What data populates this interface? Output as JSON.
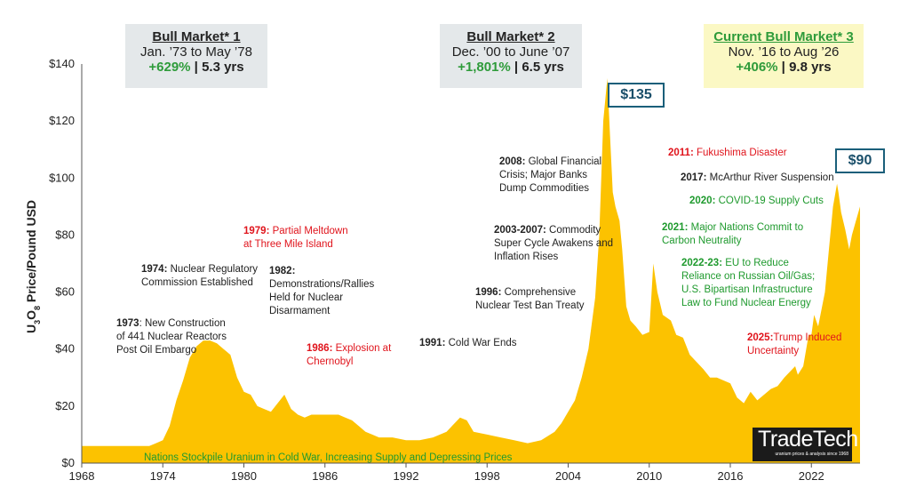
{
  "chart_data": {
    "type": "area",
    "ylabel": "Price/Pound USD",
    "ylabel_formula": "U3O8",
    "ylim": [
      0,
      140
    ],
    "xlim": [
      1968,
      2025.6
    ],
    "y_ticks": [
      "$0",
      "$20",
      "$40",
      "$60",
      "$80",
      "$100",
      "$120",
      "$140"
    ],
    "x_ticks": [
      "1968",
      "1974",
      "1980",
      "1986",
      "1992",
      "1998",
      "2004",
      "2010",
      "2016",
      "2022"
    ],
    "fill_color": "#fcc200",
    "x": [
      1968,
      1970,
      1972,
      1973,
      1973.5,
      1974,
      1974.5,
      1975,
      1975.5,
      1976,
      1976.5,
      1977,
      1977.5,
      1978,
      1978.5,
      1979,
      1979.5,
      1980,
      1980.5,
      1981,
      1981.5,
      1982,
      1982.5,
      1983,
      1983.5,
      1984,
      1984.5,
      1985,
      1986,
      1987,
      1987.5,
      1988,
      1988.5,
      1989,
      1989.5,
      1990,
      1991,
      1992,
      1993,
      1994,
      1995,
      1996,
      1996.5,
      1997,
      1998,
      1999,
      2000,
      2001,
      2002,
      2003,
      2003.5,
      2004,
      2004.5,
      2005,
      2005.5,
      2006,
      2006.3,
      2006.6,
      2006.9,
      2007.1,
      2007.3,
      2007.5,
      2007.8,
      2008,
      2008.3,
      2008.6,
      2009,
      2009.5,
      2010,
      2010.3,
      2010.6,
      2011,
      2011.3,
      2011.6,
      2012,
      2012.5,
      2013,
      2014,
      2014.5,
      2015,
      2016,
      2016.5,
      2017,
      2017.5,
      2018,
      2018.5,
      2019,
      2019.5,
      2020,
      2020.4,
      2020.8,
      2021,
      2021.4,
      2021.8,
      2022,
      2022.2,
      2022.5,
      2023,
      2023.3,
      2023.6,
      2023.9,
      2024,
      2024.2,
      2024.5,
      2024.8,
      2025,
      2025.3,
      2025.6
    ],
    "values": [
      6,
      6,
      6,
      6,
      7,
      8,
      13,
      22,
      29,
      37,
      41,
      43,
      43,
      42,
      40,
      38,
      30,
      25,
      24,
      20,
      19,
      18,
      21,
      24,
      19,
      17,
      16,
      17,
      17,
      17,
      16,
      15,
      13,
      11,
      10,
      9,
      9,
      8,
      8,
      9,
      11,
      16,
      15,
      11,
      10,
      9,
      8,
      7,
      8,
      11,
      14,
      18,
      22,
      30,
      40,
      58,
      80,
      120,
      135,
      115,
      95,
      90,
      85,
      75,
      55,
      50,
      48,
      45,
      46,
      70,
      60,
      52,
      51,
      50,
      45,
      44,
      38,
      33,
      30,
      30,
      28,
      23,
      21,
      25,
      22,
      24,
      26,
      27,
      30,
      32,
      34,
      31,
      34,
      45,
      45,
      52,
      48,
      60,
      75,
      90,
      98,
      95,
      88,
      82,
      75,
      80,
      85,
      90
    ]
  },
  "bull_markets": [
    {
      "title": "Bull Market* 1",
      "dates": "Jan. ’73 to May ’78",
      "gain": "+629%",
      "sep": " | ",
      "duration": "5.3 yrs",
      "bg": "#e4e8ea"
    },
    {
      "title": "Bull Market* 2",
      "dates": "Dec. ’00 to June ’07",
      "gain": "+1,801%",
      "sep": " | ",
      "duration": "6.5 yrs",
      "bg": "#e4e8ea"
    },
    {
      "title": "Current Bull Market* 3",
      "dates": "Nov. ’16 to Aug ’26",
      "gain": "+406%",
      "sep": " | ",
      "duration": "9.8 yrs",
      "bg": "#fbf8c4"
    }
  ],
  "price_boxes": {
    "peak_2007": "$135",
    "current": "$90"
  },
  "annotations": {
    "a1973": {
      "year": "1973",
      "text": ": New Construction of 441 Nuclear Reactors Post Oil Embargo"
    },
    "a1974": {
      "year": "1974:",
      "text": " Nuclear Regulatory Commission Established"
    },
    "a1979": {
      "year": "1979:",
      "text": " Partial Meltdown at Three Mile Island"
    },
    "a1982": {
      "year": "1982:",
      "text": " Demonstrations/Rallies Held for Nuclear Disarmament"
    },
    "a1986": {
      "year": "1986:",
      "text": " Explosion at Chernobyl"
    },
    "a1991": {
      "year": "1991:",
      "text": " Cold War Ends"
    },
    "a1996": {
      "year": "1996:",
      "text": " Comprehensive Nuclear Test Ban Treaty"
    },
    "a2003": {
      "year": "2003-2007:",
      "text": " Commodity Super Cycle Awakens and Inflation Rises"
    },
    "a2008": {
      "year": "2008:",
      "text": " Global Financial Crisis; Major Banks Dump Commodities"
    },
    "a2011": {
      "year": "2011:",
      "text": " Fukushima Disaster"
    },
    "a2017": {
      "year": "2017:",
      "text": " McArthur River Suspension"
    },
    "a2020": {
      "year": "2020:",
      "text": " COVID-19 Supply Cuts"
    },
    "a2021": {
      "year": "2021:",
      "text": " Major Nations Commit to Carbon Neutrality"
    },
    "a2022": {
      "year": "2022-23:",
      "text": " EU to Reduce Reliance on Russian Oil/Gas; U.S. Bipartisan Infrastructure Law to Fund Nuclear Energy"
    },
    "a2025": {
      "year": "2025:",
      "text": "Trump Induced Uncertainty"
    }
  },
  "bottom_note": "Nations Stockpile Uranium in Cold War, Increasing Supply and Depressing Prices",
  "logo": {
    "name": "TradeTech",
    "tagline": "uranium prices & analysis since 1968"
  }
}
